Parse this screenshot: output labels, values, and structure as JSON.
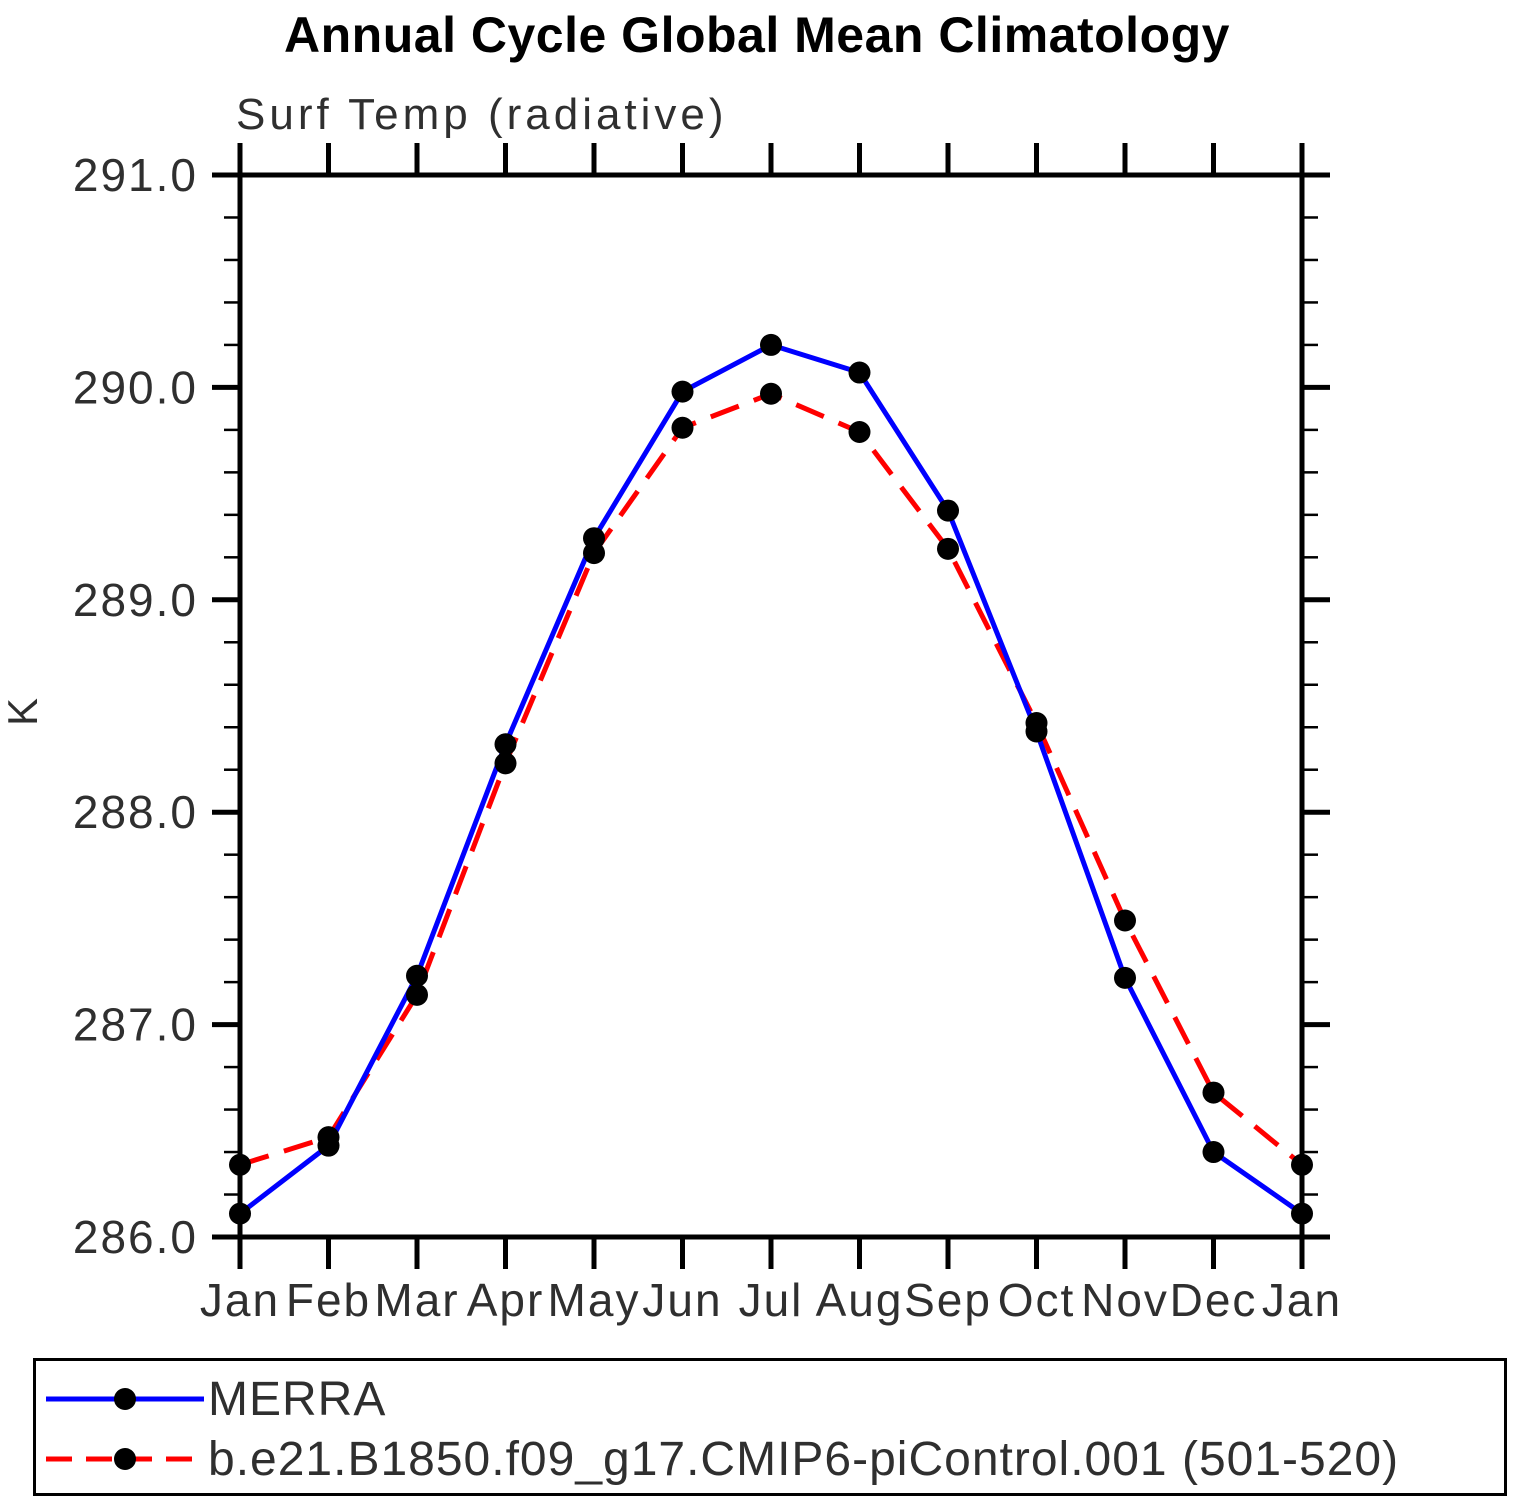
{
  "page": {
    "background": "#ffffff"
  },
  "chart_data": {
    "type": "line",
    "title": "Annual Cycle Global Mean Climatology",
    "subtitle": "Surf Temp (radiative)",
    "ylabel": "K",
    "xlabel": "",
    "categories": [
      "Jan",
      "Feb",
      "Mar",
      "Apr",
      "May",
      "Jun",
      "Jul",
      "Aug",
      "Sep",
      "Oct",
      "Nov",
      "Dec",
      "Jan"
    ],
    "ylim": [
      286.0,
      291.0
    ],
    "ytick_major": 1.0,
    "ytick_minor": 0.2,
    "grid": false,
    "legend_position": "bottom-box",
    "axis_color": "#000000",
    "marker_color": "#000000",
    "series": [
      {
        "name": "MERRA",
        "color": "#0000ff",
        "line_style": "solid",
        "marker": "filled-black-circle",
        "values": [
          286.11,
          286.43,
          287.23,
          288.32,
          289.29,
          289.98,
          290.2,
          290.07,
          289.42,
          288.38,
          287.22,
          286.4,
          286.11
        ]
      },
      {
        "name": "b.e21.B1850.f09_g17.CMIP6-piControl.001 (501-520)",
        "color": "#ff0000",
        "line_style": "dashed",
        "marker": "filled-black-circle",
        "values": [
          286.34,
          286.47,
          287.14,
          288.23,
          289.22,
          289.81,
          289.97,
          289.79,
          289.24,
          288.42,
          287.49,
          286.68,
          286.34
        ]
      }
    ]
  }
}
